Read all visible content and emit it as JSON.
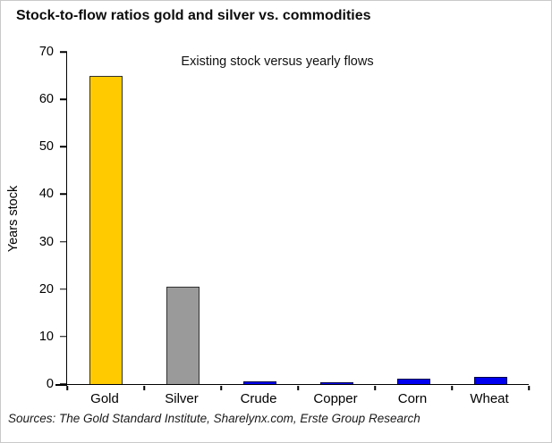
{
  "chart_data": {
    "type": "bar",
    "title": "Stock-to-flow ratios gold and silver vs. commodities",
    "subtitle": "Existing stock versus yearly flows",
    "xlabel": "",
    "ylabel": "Years stock",
    "source": "Sources: The Gold Standard Institute, Sharelynx.com, Erste Group Research",
    "categories": [
      "Gold",
      "Silver",
      "Crude",
      "Copper",
      "Corn",
      "Wheat"
    ],
    "values": [
      65,
      20.5,
      0.5,
      0.3,
      1.2,
      1.5
    ],
    "ylim": [
      0,
      70
    ],
    "ytick_step": 10,
    "grid": false,
    "legend": false,
    "bar_fill_colors": [
      "#FFCB00",
      "#9A9A9A",
      "#0000F0",
      "#0000F0",
      "#0000F0",
      "#0000F0"
    ],
    "bar_border_colors": [
      "#303030",
      "#303030",
      "#000048",
      "#000048",
      "#000048",
      "#000048"
    ],
    "axis_color": "#000000"
  }
}
